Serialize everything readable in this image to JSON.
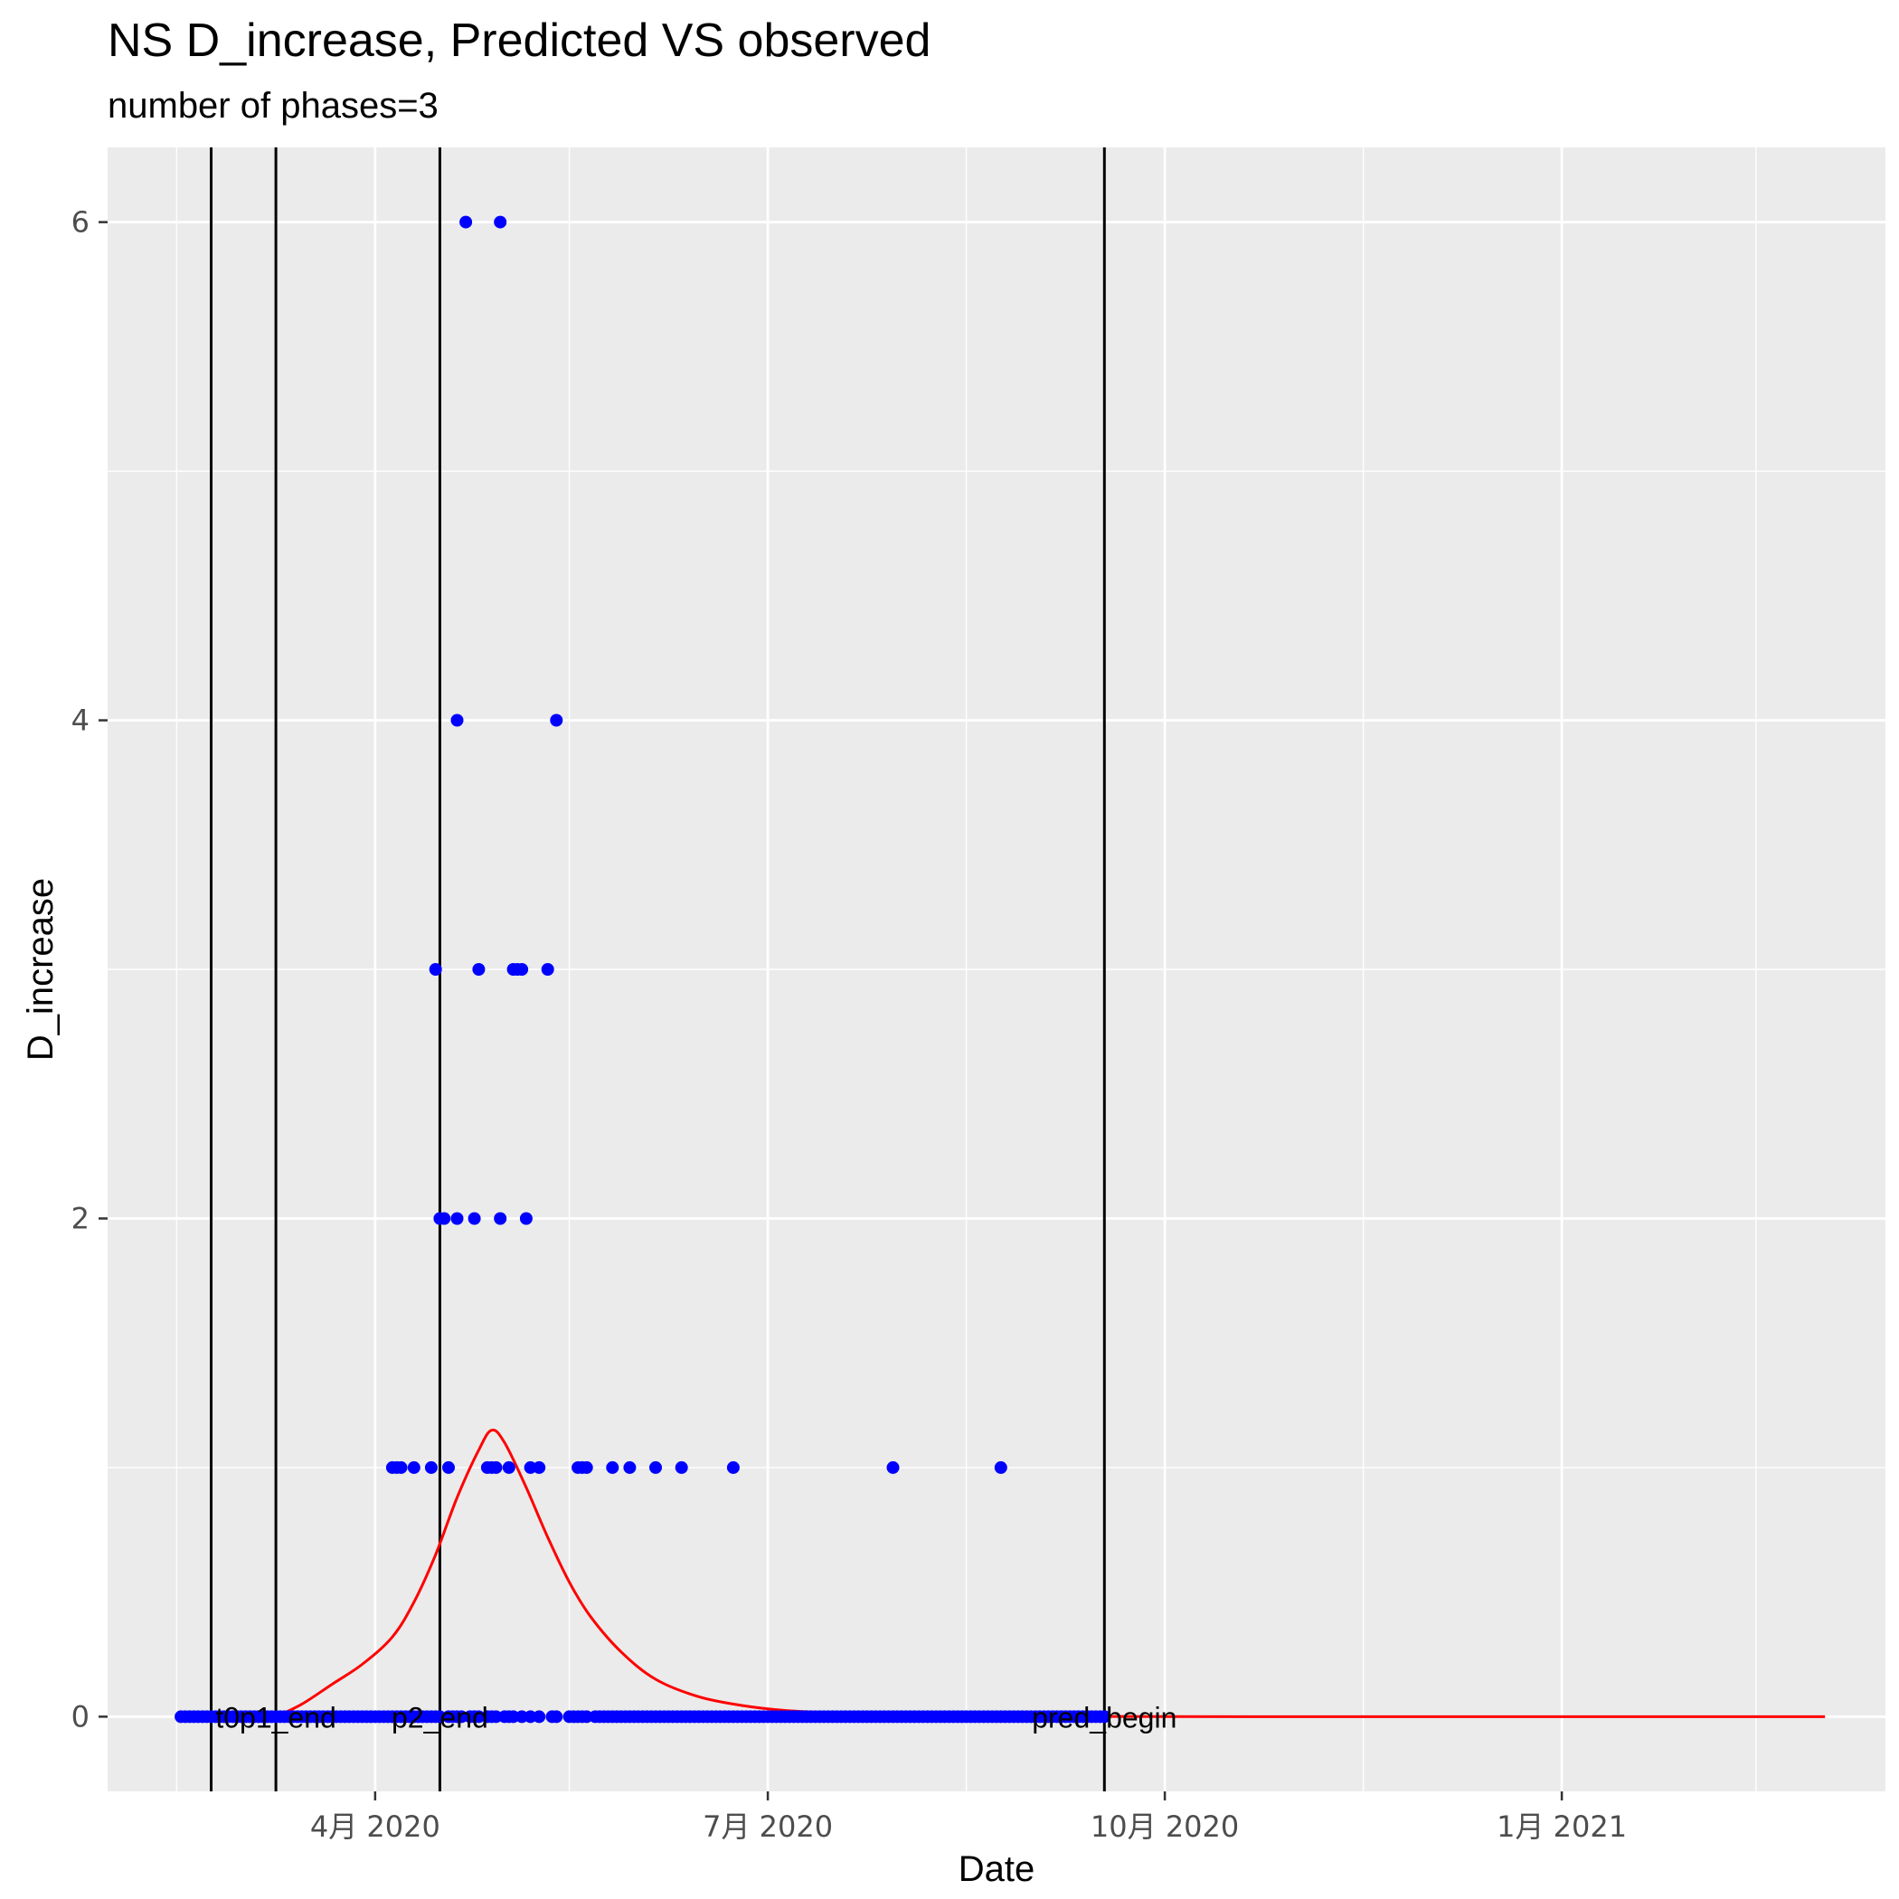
{
  "chart_data": {
    "type": "scatter",
    "title": "NS D_increase, Predicted VS observed",
    "subtitle": "number of phases=3",
    "xlabel": "Date",
    "ylabel": "D_increase",
    "x_type": "date",
    "xlim": [
      "2020-01-30",
      "2021-03-17"
    ],
    "ylim": [
      -0.3,
      6.3
    ],
    "x_ticks": [
      {
        "date": "2020-04-01",
        "label": "4月 2020"
      },
      {
        "date": "2020-07-01",
        "label": "7月 2020"
      },
      {
        "date": "2020-10-01",
        "label": "10月 2020"
      },
      {
        "date": "2021-01-01",
        "label": "1月 2021"
      }
    ],
    "x_minor_ticks": [
      "2020-02-15",
      "2020-05-16",
      "2020-08-16",
      "2020-11-16",
      "2021-02-15"
    ],
    "y_ticks": [
      0,
      2,
      4,
      6
    ],
    "y_minor_ticks": [
      1,
      3,
      5
    ],
    "grid": true,
    "colors": {
      "panel": "#ebebeb",
      "grid": "#ffffff",
      "observed": "#0000ff",
      "predicted": "#ff0000",
      "vline": "#000000"
    },
    "vlines": [
      {
        "date": "2020-02-23",
        "label": ""
      },
      {
        "date": "2020-03-09",
        "label": "t0p1_end"
      },
      {
        "date": "2020-04-16",
        "label": "p2_end"
      },
      {
        "date": "2020-09-17",
        "label": "pred_begin"
      }
    ],
    "observed": {
      "zero_range": [
        "2020-02-16",
        "2020-09-17"
      ],
      "zero_gaps": [
        "2020-04-17",
        "2020-04-22",
        "2020-04-26",
        "2020-04-30",
        "2020-05-04",
        "2020-05-06",
        "2020-05-08",
        "2020-05-10",
        "2020-05-11",
        "2020-05-14",
        "2020-05-15",
        "2020-05-21"
      ],
      "nonzero": [
        {
          "date": "2020-04-05",
          "value": 1
        },
        {
          "date": "2020-04-06",
          "value": 1
        },
        {
          "date": "2020-04-07",
          "value": 1
        },
        {
          "date": "2020-04-10",
          "value": 1
        },
        {
          "date": "2020-04-14",
          "value": 1
        },
        {
          "date": "2020-04-18",
          "value": 1
        },
        {
          "date": "2020-04-27",
          "value": 1
        },
        {
          "date": "2020-04-28",
          "value": 1
        },
        {
          "date": "2020-04-29",
          "value": 1
        },
        {
          "date": "2020-05-02",
          "value": 1
        },
        {
          "date": "2020-05-07",
          "value": 1
        },
        {
          "date": "2020-05-09",
          "value": 1
        },
        {
          "date": "2020-05-18",
          "value": 1
        },
        {
          "date": "2020-05-19",
          "value": 1
        },
        {
          "date": "2020-05-20",
          "value": 1
        },
        {
          "date": "2020-05-26",
          "value": 1
        },
        {
          "date": "2020-05-30",
          "value": 1
        },
        {
          "date": "2020-06-05",
          "value": 1
        },
        {
          "date": "2020-06-11",
          "value": 1
        },
        {
          "date": "2020-06-23",
          "value": 1
        },
        {
          "date": "2020-07-30",
          "value": 1
        },
        {
          "date": "2020-08-24",
          "value": 1
        },
        {
          "date": "2020-04-16",
          "value": 2
        },
        {
          "date": "2020-04-17",
          "value": 2
        },
        {
          "date": "2020-04-20",
          "value": 2
        },
        {
          "date": "2020-04-24",
          "value": 2
        },
        {
          "date": "2020-04-30",
          "value": 2
        },
        {
          "date": "2020-05-06",
          "value": 2
        },
        {
          "date": "2020-04-15",
          "value": 3
        },
        {
          "date": "2020-04-25",
          "value": 3
        },
        {
          "date": "2020-05-03",
          "value": 3
        },
        {
          "date": "2020-05-04",
          "value": 3
        },
        {
          "date": "2020-05-05",
          "value": 3
        },
        {
          "date": "2020-05-11",
          "value": 3
        },
        {
          "date": "2020-04-20",
          "value": 4
        },
        {
          "date": "2020-05-13",
          "value": 4
        },
        {
          "date": "2020-04-22",
          "value": 6
        },
        {
          "date": "2020-04-30",
          "value": 6
        }
      ]
    },
    "predicted": {
      "x": [
        "2020-03-09",
        "2020-03-15",
        "2020-03-22",
        "2020-03-29",
        "2020-04-05",
        "2020-04-10",
        "2020-04-15",
        "2020-04-20",
        "2020-04-25",
        "2020-04-28",
        "2020-05-01",
        "2020-05-06",
        "2020-05-11",
        "2020-05-16",
        "2020-05-21",
        "2020-05-28",
        "2020-06-05",
        "2020-06-15",
        "2020-06-25",
        "2020-07-05",
        "2020-07-20",
        "2020-08-05",
        "2020-08-25",
        "2020-09-17",
        "2020-10-20",
        "2020-12-01",
        "2021-01-15",
        "2021-03-03"
      ],
      "y": [
        0,
        0.05,
        0.13,
        0.21,
        0.32,
        0.46,
        0.65,
        0.88,
        1.07,
        1.15,
        1.1,
        0.92,
        0.72,
        0.54,
        0.4,
        0.26,
        0.15,
        0.08,
        0.045,
        0.025,
        0.012,
        0.005,
        0.002,
        0.001,
        0,
        0,
        0,
        0
      ]
    }
  }
}
